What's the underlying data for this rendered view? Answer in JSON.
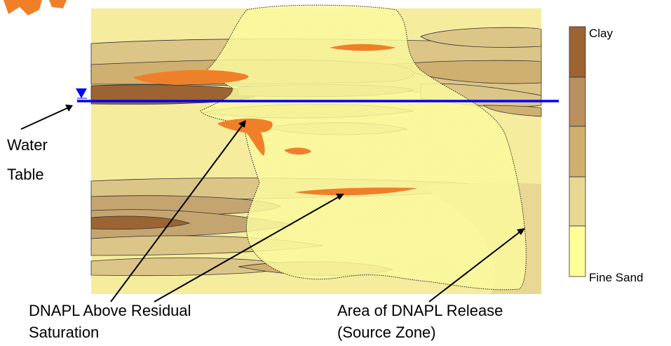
{
  "labels": {
    "water_table_line1": "Water",
    "water_table_line2": "Table",
    "dnapl_residual_line1": "DNAPL Above Residual",
    "dnapl_residual_line2": "Saturation",
    "source_zone_line1": "Area of DNAPL Release",
    "source_zone_line2": "(Source Zone)"
  },
  "legend": {
    "top_label": "Clay",
    "bottom_label": "Fine Sand",
    "swatches": [
      "#9b6432",
      "#b99060",
      "#cfb070",
      "#e9d893",
      "#ffff99"
    ]
  },
  "colors": {
    "fine_sand": "#ffff99",
    "light_sand": "#f5ec9e",
    "medium_sand": "#dcc687",
    "silt": "#c4a56f",
    "clay": "#9b6432",
    "dnapl": "#f07f2a",
    "water_table": "#0000ff",
    "source_zone_fill": "#ffffb0"
  }
}
